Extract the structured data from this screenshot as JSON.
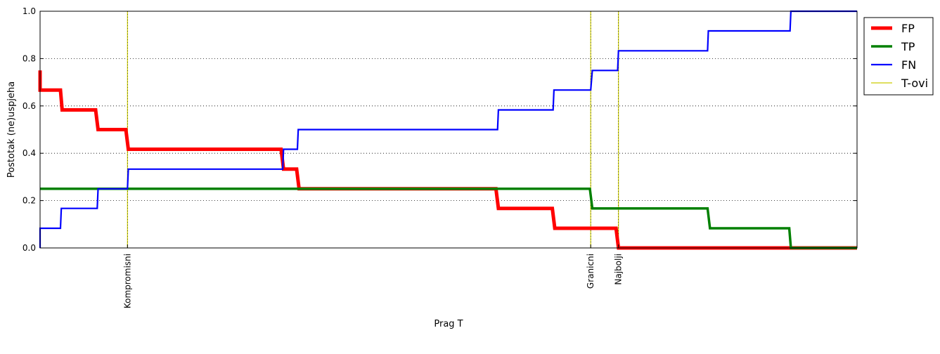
{
  "chart_data": {
    "type": "line",
    "title": "",
    "xlabel": "Prag T",
    "ylabel": "Postotak (ne)uspjeha",
    "xlim": [
      0,
      1
    ],
    "ylim": [
      0,
      1
    ],
    "yticks": [
      "0.0",
      "0.2",
      "0.4",
      "0.6",
      "0.8",
      "1.0"
    ],
    "grid": "horizontal dotted",
    "legend_position": "outside-top-right",
    "series": [
      {
        "name": "FP",
        "color": "#ff0000",
        "points": [
          [
            0.0,
            0.75
          ],
          [
            0.0,
            0.667
          ],
          [
            0.025,
            0.667
          ],
          [
            0.027,
            0.583
          ],
          [
            0.068,
            0.583
          ],
          [
            0.071,
            0.5
          ],
          [
            0.105,
            0.5
          ],
          [
            0.108,
            0.417
          ],
          [
            0.295,
            0.417
          ],
          [
            0.298,
            0.333
          ],
          [
            0.314,
            0.333
          ],
          [
            0.317,
            0.25
          ],
          [
            0.558,
            0.25
          ],
          [
            0.561,
            0.167
          ],
          [
            0.627,
            0.167
          ],
          [
            0.63,
            0.083
          ],
          [
            0.705,
            0.083
          ],
          [
            0.708,
            0.0
          ],
          [
            1.0,
            0.0
          ]
        ]
      },
      {
        "name": "TP",
        "color": "#008000",
        "points": [
          [
            0.0,
            0.25
          ],
          [
            0.673,
            0.25
          ],
          [
            0.676,
            0.167
          ],
          [
            0.817,
            0.167
          ],
          [
            0.82,
            0.083
          ],
          [
            0.917,
            0.083
          ],
          [
            0.919,
            0.0
          ],
          [
            1.0,
            0.0
          ]
        ]
      },
      {
        "name": "FN",
        "color": "#0000ff",
        "points": [
          [
            0.0,
            0.0
          ],
          [
            0.0,
            0.083
          ],
          [
            0.025,
            0.083
          ],
          [
            0.026,
            0.167
          ],
          [
            0.07,
            0.167
          ],
          [
            0.071,
            0.25
          ],
          [
            0.107,
            0.25
          ],
          [
            0.108,
            0.333
          ],
          [
            0.297,
            0.333
          ],
          [
            0.298,
            0.417
          ],
          [
            0.315,
            0.417
          ],
          [
            0.316,
            0.5
          ],
          [
            0.56,
            0.5
          ],
          [
            0.561,
            0.583
          ],
          [
            0.628,
            0.583
          ],
          [
            0.629,
            0.667
          ],
          [
            0.674,
            0.667
          ],
          [
            0.676,
            0.75
          ],
          [
            0.707,
            0.75
          ],
          [
            0.708,
            0.833
          ],
          [
            0.817,
            0.833
          ],
          [
            0.818,
            0.917
          ],
          [
            0.918,
            0.917
          ],
          [
            0.919,
            1.0
          ],
          [
            1.0,
            1.0
          ]
        ]
      }
    ],
    "thresholds_series": {
      "name": "T-ovi",
      "color": "#cccc00",
      "items": [
        {
          "label": "Kompromisni",
          "x": 0.107
        },
        {
          "label": "Granicni",
          "x": 0.674
        },
        {
          "label": "Najbolji",
          "x": 0.708
        }
      ]
    }
  }
}
